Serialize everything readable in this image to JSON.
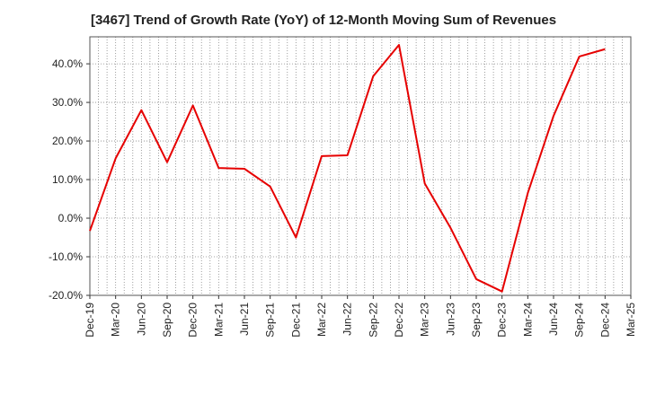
{
  "chart_data": {
    "type": "line",
    "title": "[3467]  Trend of Growth Rate (YoY) of 12-Month Moving Sum of Revenues",
    "xlabel": "",
    "ylabel": "",
    "y_unit": "%",
    "ylim": [
      -20,
      47
    ],
    "yticks": [
      -20,
      -10,
      0,
      10,
      20,
      30,
      40
    ],
    "ytick_labels": [
      "-20.0%",
      "-10.0%",
      "0.0%",
      "10.0%",
      "20.0%",
      "30.0%",
      "40.0%"
    ],
    "xticks": [
      "Dec-19",
      "Mar-20",
      "Jun-20",
      "Sep-20",
      "Dec-20",
      "Mar-21",
      "Jun-21",
      "Sep-21",
      "Dec-21",
      "Mar-22",
      "Jun-22",
      "Sep-22",
      "Dec-22",
      "Mar-23",
      "Jun-23",
      "Sep-23",
      "Dec-23",
      "Mar-24",
      "Jun-24",
      "Sep-24",
      "Dec-24",
      "Mar-25"
    ],
    "grid": true,
    "line_color": "#e60000",
    "series": [
      {
        "x": [
          "Dec-19",
          "Mar-20",
          "Jun-20",
          "Sep-20",
          "Dec-20",
          "Mar-21",
          "Jun-21",
          "Sep-21",
          "Dec-21",
          "Mar-22",
          "Jun-22",
          "Sep-22",
          "Dec-22",
          "Mar-23",
          "Jun-23",
          "Sep-23",
          "Dec-23",
          "Mar-24",
          "Jun-24",
          "Sep-24",
          "Dec-24"
        ],
        "values": [
          -3.3,
          15.5,
          28.0,
          14.5,
          29.2,
          13.0,
          12.8,
          8.2,
          -5.0,
          16.1,
          16.3,
          36.8,
          44.9,
          9.0,
          -2.5,
          -15.8,
          -19.0,
          6.5,
          26.5,
          41.9,
          43.8
        ]
      }
    ]
  }
}
